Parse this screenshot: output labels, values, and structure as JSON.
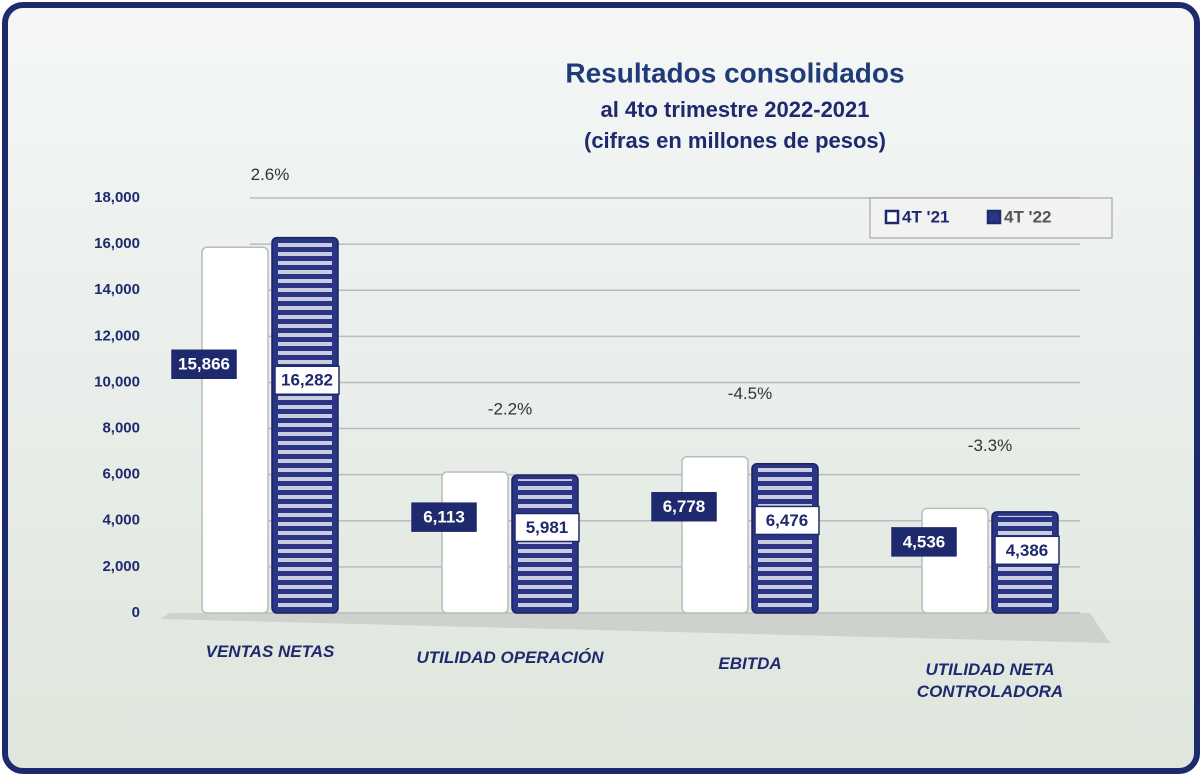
{
  "chart_data": {
    "type": "bar",
    "title": "Resultados consolidados",
    "subtitle": [
      "al  4to trimestre 2022-2021",
      "(cifras en millones de pesos)"
    ],
    "categories": [
      "VENTAS NETAS",
      "UTILIDAD OPERACIÓN",
      "EBITDA",
      "UTILIDAD NETA CONTROLADORA"
    ],
    "series": [
      {
        "name": "4T '21",
        "color": "#ffffff",
        "values": [
          15866,
          6113,
          6778,
          4536
        ],
        "value_labels": [
          "15,866",
          "6,113",
          "6,778",
          "4,536"
        ]
      },
      {
        "name": "4T '22",
        "color": "#2a3585",
        "values": [
          16282,
          5981,
          6476,
          4386
        ],
        "value_labels": [
          "16,282",
          "5,981",
          "6,476",
          "4,386"
        ]
      }
    ],
    "annotations": [
      "2.6%",
      "-2.2%",
      "-4.5%",
      "-3.3%"
    ],
    "ylim": [
      0,
      18000
    ],
    "yticks": [
      0,
      {
        "value": 2000,
        "label": "2,000"
      },
      {
        "value": 4000,
        "label": "4,000"
      },
      {
        "value": 6000,
        "label": "6,000"
      },
      {
        "value": 8000,
        "label": "8,000"
      },
      {
        "value": 10000,
        "label": "10,000"
      },
      {
        "value": 12000,
        "label": "12,000"
      },
      {
        "value": 14000,
        "label": "14,000"
      },
      {
        "value": 16000,
        "label": "16,000"
      },
      {
        "value": 18000,
        "label": "18,000"
      }
    ],
    "grid": true,
    "legend": "top-right"
  }
}
